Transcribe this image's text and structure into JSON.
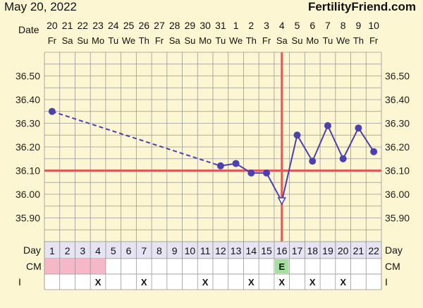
{
  "header": {
    "date": "May 20, 2022",
    "site": "FertilityFriend.com"
  },
  "chart_data": {
    "type": "line",
    "title": "",
    "row_labels": {
      "date": "Date",
      "day": "Day",
      "cm": "CM",
      "intercourse": "I"
    },
    "dates": [
      "20",
      "21",
      "22",
      "23",
      "24",
      "25",
      "26",
      "27",
      "28",
      "29",
      "30",
      "31",
      "1",
      "2",
      "3",
      "4",
      "5",
      "6",
      "7",
      "8",
      "9",
      "10"
    ],
    "weekdays": [
      "Fr",
      "Sa",
      "Su",
      "Mo",
      "Tu",
      "We",
      "Th",
      "Fr",
      "Sa",
      "Su",
      "Mo",
      "Tu",
      "We",
      "Th",
      "Fr",
      "Sa",
      "Su",
      "Mo",
      "Tu",
      "We",
      "Th",
      "Fr"
    ],
    "cycle_days": [
      1,
      2,
      3,
      4,
      5,
      6,
      7,
      8,
      9,
      10,
      11,
      12,
      13,
      14,
      15,
      16,
      17,
      18,
      19,
      20,
      21,
      22
    ],
    "y_ticks": [
      "36.50",
      "36.40",
      "36.30",
      "36.20",
      "36.10",
      "36.00",
      "35.90"
    ],
    "ylim": [
      35.8,
      36.6
    ],
    "series": [
      {
        "x": [
          1,
          12,
          13,
          14,
          15,
          16,
          17,
          18,
          19,
          20,
          21,
          22
        ],
        "values": [
          36.35,
          36.12,
          36.13,
          36.09,
          36.09,
          35.97,
          36.25,
          36.14,
          36.29,
          36.15,
          36.28,
          36.18
        ],
        "open_marker_days": [
          16
        ],
        "dashed_from_day": 1,
        "dashed_to_day": 12
      }
    ],
    "coverline": 36.1,
    "ovulation_day": 16,
    "cm_marked_days": [
      1,
      2,
      3,
      4
    ],
    "cm_labels": [
      {
        "day": 16,
        "text": "E"
      }
    ],
    "intercourse_mark": "X",
    "intercourse_days": [
      4,
      7,
      11,
      14,
      16,
      18,
      20
    ],
    "colors": {
      "line": "#4b40b0",
      "coverline": "#e05a5a",
      "grid": "#999999",
      "plot_bg": "#fdf6d2",
      "cm_fill": "#f6b8c8",
      "egg_white_fill": "#a6e0a0",
      "day_row_bg": "#e6e4f2"
    }
  }
}
